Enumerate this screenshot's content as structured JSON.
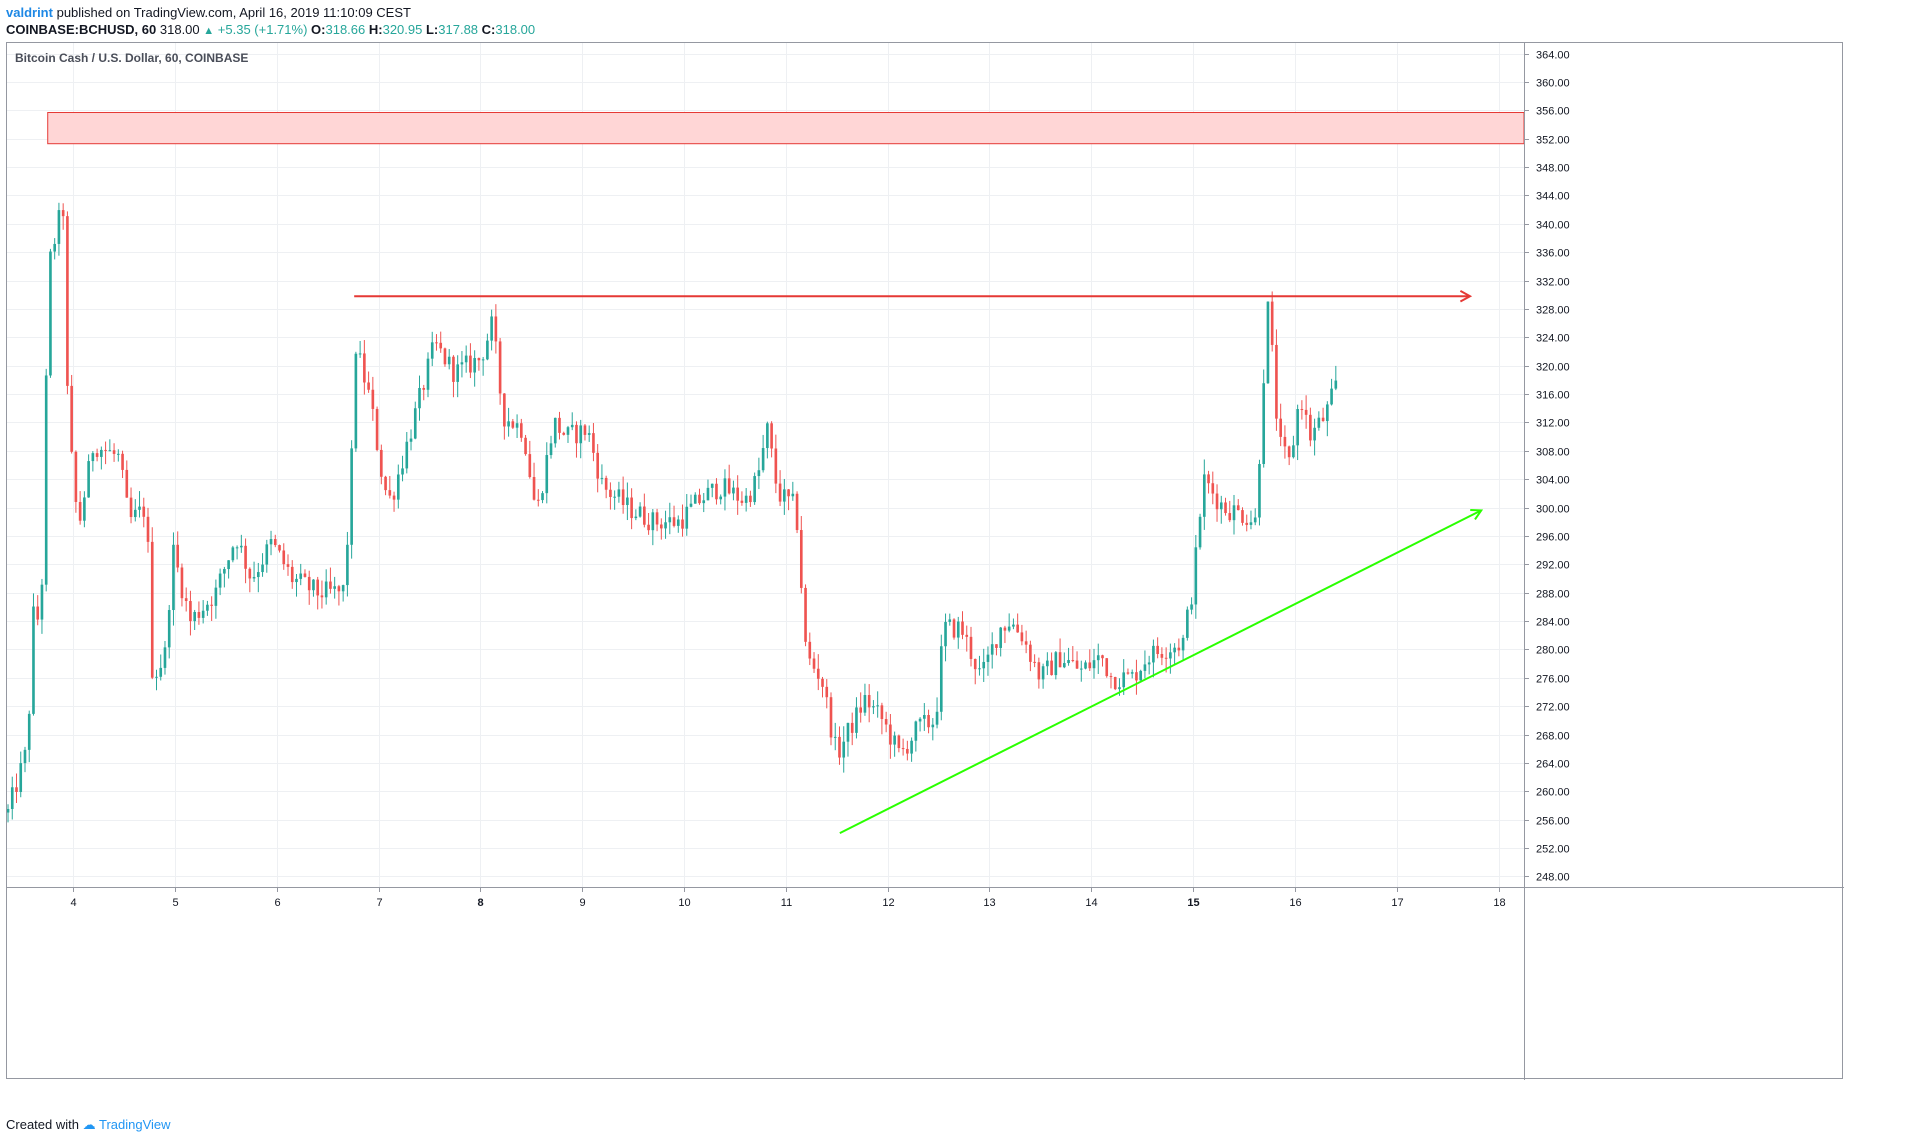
{
  "header": {
    "author": "valdrint",
    "published_text": "published on TradingView.com, April 16, 2019 11:10:09 CEST",
    "symbol": "COINBASE:BCHUSD, 60",
    "last": "318.00",
    "change": "+5.35 (+1.71%)",
    "o_label": "O:",
    "o_value": "318.66",
    "h_label": "H:",
    "h_value": "320.95",
    "l_label": "L:",
    "l_value": "317.88",
    "c_label": "C:",
    "c_value": "318.00"
  },
  "chart_title": "Bitcoin Cash / U.S. Dollar, 60, COINBASE",
  "footer": {
    "created_with": "Created with",
    "brand": "TradingView"
  },
  "colors": {
    "up": "#26a69a",
    "down": "#ef5350",
    "zone_fill": "#ffd6d6",
    "zone_stroke": "#e53935",
    "resistance": "#e53935",
    "support": "#2aff00",
    "grid": "#eef0f3"
  },
  "chart_data": {
    "type": "candlestick",
    "title": "Bitcoin Cash / U.S. Dollar, 60, COINBASE",
    "x_axis": {
      "unit": "day of April 2019",
      "range": [
        3.35,
        18.25
      ],
      "ticks": [
        "4",
        "5",
        "6",
        "7",
        "8",
        "9",
        "10",
        "11",
        "12",
        "13",
        "14",
        "15",
        "16",
        "17",
        "18"
      ],
      "bold_ticks": [
        "8",
        "15"
      ]
    },
    "y_axis": {
      "range": [
        246.5,
        365.5
      ],
      "ticks": [
        "248.00",
        "252.00",
        "256.00",
        "260.00",
        "264.00",
        "268.00",
        "272.00",
        "276.00",
        "280.00",
        "284.00",
        "288.00",
        "292.00",
        "296.00",
        "300.00",
        "304.00",
        "308.00",
        "312.00",
        "316.00",
        "320.00",
        "324.00",
        "328.00",
        "332.00",
        "336.00",
        "340.00",
        "344.00",
        "348.00",
        "352.00",
        "356.00",
        "360.00",
        "364.00"
      ]
    },
    "grid": true,
    "last_price": 318.0,
    "anchors": [
      {
        "day": 3.36,
        "price": 257
      },
      {
        "day": 3.55,
        "price": 266
      },
      {
        "day": 3.62,
        "price": 288
      },
      {
        "day": 3.68,
        "price": 281
      },
      {
        "day": 3.76,
        "price": 334
      },
      {
        "day": 3.9,
        "price": 343
      },
      {
        "day": 3.95,
        "price": 312
      },
      {
        "day": 4.05,
        "price": 297
      },
      {
        "day": 4.2,
        "price": 309
      },
      {
        "day": 4.45,
        "price": 307
      },
      {
        "day": 4.55,
        "price": 298
      },
      {
        "day": 4.72,
        "price": 300
      },
      {
        "day": 4.78,
        "price": 276
      },
      {
        "day": 4.9,
        "price": 279
      },
      {
        "day": 4.98,
        "price": 294
      },
      {
        "day": 5.15,
        "price": 284
      },
      {
        "day": 5.4,
        "price": 288
      },
      {
        "day": 5.6,
        "price": 296
      },
      {
        "day": 5.75,
        "price": 290
      },
      {
        "day": 5.95,
        "price": 295
      },
      {
        "day": 6.15,
        "price": 290
      },
      {
        "day": 6.4,
        "price": 288
      },
      {
        "day": 6.65,
        "price": 288
      },
      {
        "day": 6.72,
        "price": 300
      },
      {
        "day": 6.77,
        "price": 323
      },
      {
        "day": 6.92,
        "price": 315
      },
      {
        "day": 7.05,
        "price": 303
      },
      {
        "day": 7.12,
        "price": 301
      },
      {
        "day": 7.3,
        "price": 310
      },
      {
        "day": 7.55,
        "price": 323
      },
      {
        "day": 7.75,
        "price": 319
      },
      {
        "day": 8.0,
        "price": 321
      },
      {
        "day": 8.12,
        "price": 326
      },
      {
        "day": 8.22,
        "price": 313
      },
      {
        "day": 8.42,
        "price": 311
      },
      {
        "day": 8.55,
        "price": 299
      },
      {
        "day": 8.72,
        "price": 312
      },
      {
        "day": 8.85,
        "price": 310
      },
      {
        "day": 9.05,
        "price": 311
      },
      {
        "day": 9.2,
        "price": 303
      },
      {
        "day": 9.45,
        "price": 300
      },
      {
        "day": 9.7,
        "price": 298
      },
      {
        "day": 9.95,
        "price": 298
      },
      {
        "day": 10.15,
        "price": 301
      },
      {
        "day": 10.35,
        "price": 303
      },
      {
        "day": 10.6,
        "price": 301
      },
      {
        "day": 10.72,
        "price": 304
      },
      {
        "day": 10.82,
        "price": 311
      },
      {
        "day": 10.92,
        "price": 302
      },
      {
        "day": 11.1,
        "price": 300
      },
      {
        "day": 11.2,
        "price": 279
      },
      {
        "day": 11.35,
        "price": 276
      },
      {
        "day": 11.5,
        "price": 265
      },
      {
        "day": 11.6,
        "price": 268
      },
      {
        "day": 11.78,
        "price": 273
      },
      {
        "day": 11.95,
        "price": 270
      },
      {
        "day": 12.12,
        "price": 265
      },
      {
        "day": 12.3,
        "price": 269
      },
      {
        "day": 12.47,
        "price": 270
      },
      {
        "day": 12.55,
        "price": 283
      },
      {
        "day": 12.72,
        "price": 283
      },
      {
        "day": 12.92,
        "price": 276
      },
      {
        "day": 13.1,
        "price": 283
      },
      {
        "day": 13.2,
        "price": 284
      },
      {
        "day": 13.32,
        "price": 282
      },
      {
        "day": 13.5,
        "price": 276
      },
      {
        "day": 13.7,
        "price": 279
      },
      {
        "day": 13.9,
        "price": 277
      },
      {
        "day": 14.1,
        "price": 279
      },
      {
        "day": 14.2,
        "price": 276
      },
      {
        "day": 14.4,
        "price": 276
      },
      {
        "day": 14.55,
        "price": 279
      },
      {
        "day": 14.7,
        "price": 280
      },
      {
        "day": 14.9,
        "price": 281
      },
      {
        "day": 15.0,
        "price": 289
      },
      {
        "day": 15.1,
        "price": 304
      },
      {
        "day": 15.3,
        "price": 300
      },
      {
        "day": 15.5,
        "price": 299
      },
      {
        "day": 15.62,
        "price": 298
      },
      {
        "day": 15.68,
        "price": 316
      },
      {
        "day": 15.74,
        "price": 329
      },
      {
        "day": 15.84,
        "price": 309
      },
      {
        "day": 15.95,
        "price": 306
      },
      {
        "day": 16.05,
        "price": 316
      },
      {
        "day": 16.15,
        "price": 310
      },
      {
        "day": 16.3,
        "price": 313
      },
      {
        "day": 16.43,
        "price": 318
      }
    ],
    "annotations": [
      {
        "kind": "supply_zone",
        "day_from": 3.75,
        "day_to": 18.25,
        "price_low": 351.3,
        "price_high": 355.7
      },
      {
        "kind": "resistance_arrow",
        "day_from": 6.76,
        "day_to": 17.72,
        "price": 329.8,
        "color": "#e53935"
      },
      {
        "kind": "support_arrow",
        "day_from": 11.53,
        "price_from": 254.1,
        "day_to": 17.83,
        "price_to": 299.6,
        "color": "#2aff00"
      }
    ]
  }
}
